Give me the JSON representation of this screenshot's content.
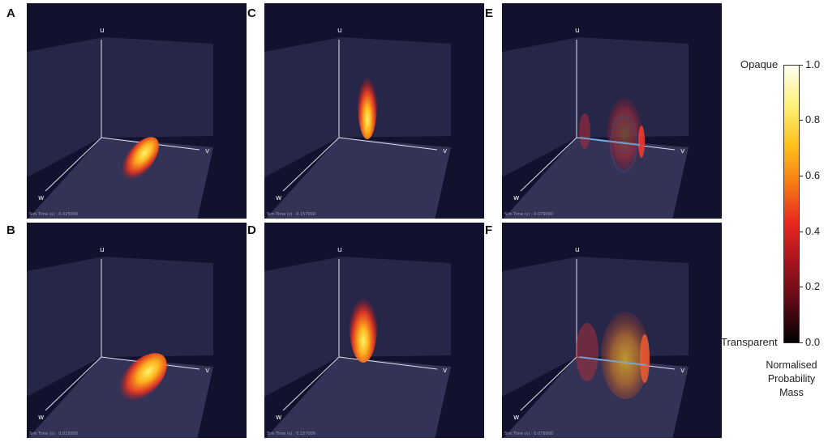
{
  "panels": [
    {
      "label": "A",
      "axes": {
        "u": "u",
        "v": "v",
        "w": "w"
      },
      "sim_time": "Sim Time (s) : 0.025000"
    },
    {
      "label": "B",
      "axes": {
        "u": "u",
        "v": "v",
        "w": "w"
      },
      "sim_time": "Sim Time (s) : 0.025000"
    },
    {
      "label": "C",
      "axes": {
        "u": "u",
        "v": "v",
        "w": "w"
      },
      "sim_time": "Sim Time (s) : 0.157000"
    },
    {
      "label": "D",
      "axes": {
        "u": "u",
        "v": "v",
        "w": "w"
      },
      "sim_time": "Sim Time (s) : 0.157000"
    },
    {
      "label": "E",
      "axes": {
        "u": "u",
        "v": "v",
        "w": "w"
      },
      "sim_time": "Sim Time (s) : 0.079000"
    },
    {
      "label": "F",
      "axes": {
        "u": "u",
        "v": "v",
        "w": "w"
      },
      "sim_time": "Sim Time (s) : 0.079000"
    }
  ],
  "colorbar": {
    "top_label": "Opaque",
    "bottom_label": "Transparent",
    "ticks": [
      "1.0",
      "0.8",
      "0.6",
      "0.4",
      "0.2",
      "0.0"
    ],
    "title_lines": [
      "Normalised",
      "Probability",
      "Mass"
    ],
    "colors": [
      "#fffdf2",
      "#fff27a",
      "#ffc21a",
      "#f57a14",
      "#e8261f",
      "#a3141e",
      "#5a0a14",
      "#000000"
    ]
  }
}
